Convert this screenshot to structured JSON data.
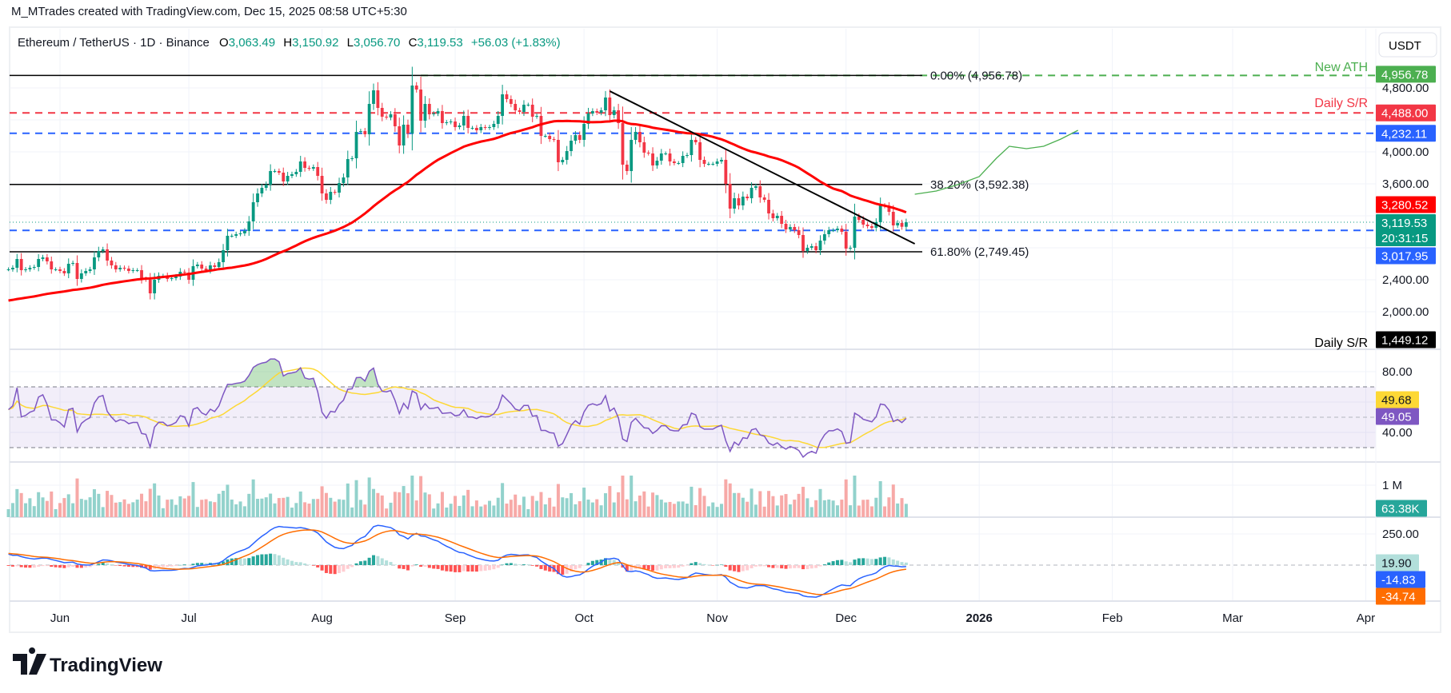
{
  "header": {
    "credit": "M_MTrades created with TradingView.com, Dec 15, 2025 08:58 UTC+5:30"
  },
  "legend": {
    "symbol": "Ethereum / TetherUS · 1D · Binance",
    "o_label": "O",
    "o": "3,063.49",
    "h_label": "H",
    "h": "3,150.92",
    "l_label": "L",
    "l": "3,056.70",
    "c_label": "C",
    "c": "3,119.53",
    "change": "+56.03 (+1.83%)"
  },
  "currency_button": "USDT",
  "colors": {
    "up": "#089981",
    "down": "#F23645",
    "ma": "#FF0000",
    "vol_up": "#92D2CC",
    "vol_down": "#F7A9A7",
    "rsi": "#7E57C2",
    "rsi_ma": "#FDD835",
    "macd": "#2962FF",
    "signal": "#FF6D00",
    "ath": "#4CAF50",
    "resistance": "#F23645",
    "support": "#2962FF"
  },
  "price_axis": {
    "ticks": [
      {
        "value": 4800,
        "label": "4,800.00"
      },
      {
        "value": 4000,
        "label": "4,000.00"
      },
      {
        "value": 3600,
        "label": "3,600.00"
      },
      {
        "value": 2400,
        "label": "2,400.00"
      },
      {
        "value": 2000,
        "label": "2,000.00"
      }
    ],
    "scale": "linear"
  },
  "time_axis": {
    "ticks": [
      {
        "date": "2025-06-01",
        "label": "Jun"
      },
      {
        "date": "2025-07-01",
        "label": "Jul"
      },
      {
        "date": "2025-08-01",
        "label": "Aug"
      },
      {
        "date": "2025-09-01",
        "label": "Sep"
      },
      {
        "date": "2025-10-01",
        "label": "Oct"
      },
      {
        "date": "2025-11-01",
        "label": "Nov"
      },
      {
        "date": "2025-12-01",
        "label": "Dec"
      },
      {
        "date": "2026-01-01",
        "label": "2026",
        "bold": true
      },
      {
        "date": "2026-02-01",
        "label": "Feb"
      },
      {
        "date": "2026-03-01",
        "label": "Mar"
      },
      {
        "date": "2026-04-01",
        "label": "Apr"
      }
    ]
  },
  "levels": {
    "ath": {
      "value": 4956.78,
      "label": "4,956.78",
      "text": "New ATH"
    },
    "daily_sr_top": {
      "value": 4488.0,
      "label": "4,488.00",
      "text": "Daily S/R"
    },
    "support_upper": {
      "value": 4232.11,
      "label": "4,232.11"
    },
    "support_lower": {
      "value": 3017.95,
      "label": "3,017.95"
    },
    "daily_sr_bottom": {
      "value": 1449.12,
      "label": "1,449.12",
      "text": "Daily S/R"
    },
    "ma_last": {
      "value": 3280.52,
      "label": "3,280.52"
    },
    "last_price": {
      "value": 3119.53,
      "label": "3,119.53",
      "countdown": "20:31:15"
    }
  },
  "fibonacci": [
    {
      "value": 4956.78,
      "text": "0.00% (4,956.78)"
    },
    {
      "value": 3592.38,
      "text": "38.20% (3,592.38)"
    },
    {
      "value": 2749.45,
      "text": "61.80% (2,749.45)"
    }
  ],
  "trendline": {
    "from": {
      "date": "2025-10-07",
      "price": 4760
    },
    "to": {
      "date": "2025-12-17",
      "price": 2850
    }
  },
  "projection": [
    {
      "date": "2025-12-17",
      "price": 3470
    },
    {
      "date": "2025-12-22",
      "price": 3510
    },
    {
      "date": "2025-12-27",
      "price": 3590
    },
    {
      "date": "2026-01-01",
      "price": 3690
    },
    {
      "date": "2026-01-05",
      "price": 3920
    },
    {
      "date": "2026-01-08",
      "price": 4070
    },
    {
      "date": "2026-01-12",
      "price": 4040
    },
    {
      "date": "2026-01-16",
      "price": 4070
    },
    {
      "date": "2026-01-20",
      "price": 4160
    },
    {
      "date": "2026-01-24",
      "price": 4270
    }
  ],
  "rsi": {
    "ticks": [
      {
        "value": 80,
        "label": "80.00"
      },
      {
        "value": 40,
        "label": "40.00"
      }
    ],
    "band": [
      30,
      70
    ],
    "value": "49.05",
    "ma_value": "49.68"
  },
  "volume": {
    "tick": "1 M",
    "value": "63.38K"
  },
  "macd": {
    "tick": "250.00",
    "hist": "19.90",
    "macd": "-14.83",
    "signal": "-34.74"
  },
  "chart_data": {
    "type": "candlestick",
    "symbol": "Ethereum / TetherUS",
    "interval": "1D",
    "ma_start": 2140,
    "closes": [
      {
        "from": "2025-05-20",
        "values": [
          2530,
          2550,
          2660,
          2520,
          2530,
          2550,
          2560,
          2660,
          2680,
          2630,
          2530,
          2530
        ]
      },
      {
        "from": "2025-06-01",
        "values": [
          2510,
          2480,
          2600,
          2610,
          2410,
          2480,
          2510,
          2530,
          2680,
          2760,
          2780,
          2640,
          2580,
          2530,
          2550,
          2540,
          2510,
          2520,
          2520,
          2410,
          2400,
          2230,
          2400,
          2450,
          2450,
          2410,
          2420,
          2440,
          2500,
          2490
        ]
      },
      {
        "from": "2025-07-01",
        "values": [
          2400,
          2570,
          2590,
          2540,
          2520,
          2580,
          2560,
          2620,
          2770,
          2950,
          2950,
          2970,
          2980,
          3010,
          3130,
          3370,
          3480,
          3550,
          3590,
          3760,
          3760,
          3740,
          3630,
          3700,
          3720,
          3750,
          3880,
          3800,
          3790,
          3810,
          3700
        ]
      },
      {
        "from": "2025-08-01",
        "values": [
          3480,
          3400,
          3500,
          3490,
          3610,
          3680,
          3910,
          3920,
          4250,
          4260,
          4220,
          4600,
          4770,
          4550,
          4440,
          4430,
          4470,
          4320,
          4080,
          4340,
          4230,
          4830,
          4780,
          4390,
          4600,
          4470,
          4480,
          4510,
          4360,
          4370,
          4380
        ]
      },
      {
        "from": "2025-09-01",
        "values": [
          4310,
          4330,
          4450,
          4300,
          4300,
          4270,
          4310,
          4300,
          4310,
          4350,
          4450,
          4720,
          4660,
          4600,
          4520,
          4500,
          4590,
          4590,
          4440,
          4450,
          4200,
          4200,
          4160,
          4150,
          3870,
          3900,
          4010,
          4140,
          4210,
          4150
        ]
      },
      {
        "from": "2025-10-01",
        "values": [
          4350,
          4480,
          4510,
          4490,
          4520,
          4680,
          4460,
          4520,
          4360,
          3840,
          3760,
          4150,
          4250,
          4120,
          3990,
          3980,
          3830,
          3890,
          3980,
          3980,
          3880,
          3860,
          3860,
          3950,
          3960,
          4150,
          4120,
          3900,
          3850,
          3850,
          3850
        ]
      },
      {
        "from": "2025-11-01",
        "values": [
          3880,
          3900,
          3600,
          3290,
          3420,
          3330,
          3440,
          3420,
          3550,
          3570,
          3430,
          3400,
          3230,
          3170,
          3200,
          3100,
          3030,
          3060,
          3020,
          2960,
          2760,
          2800,
          2820,
          2770,
          2890,
          2970,
          3020,
          3020,
          3040,
          3000
        ]
      },
      {
        "from": "2025-12-01",
        "values": [
          2790,
          2800,
          3190,
          3150,
          3090,
          3070,
          3050,
          3120,
          3330,
          3320,
          3250,
          3080,
          3110,
          3063,
          3119.53
        ]
      }
    ]
  },
  "branding": {
    "logo_text": "TradingView"
  }
}
